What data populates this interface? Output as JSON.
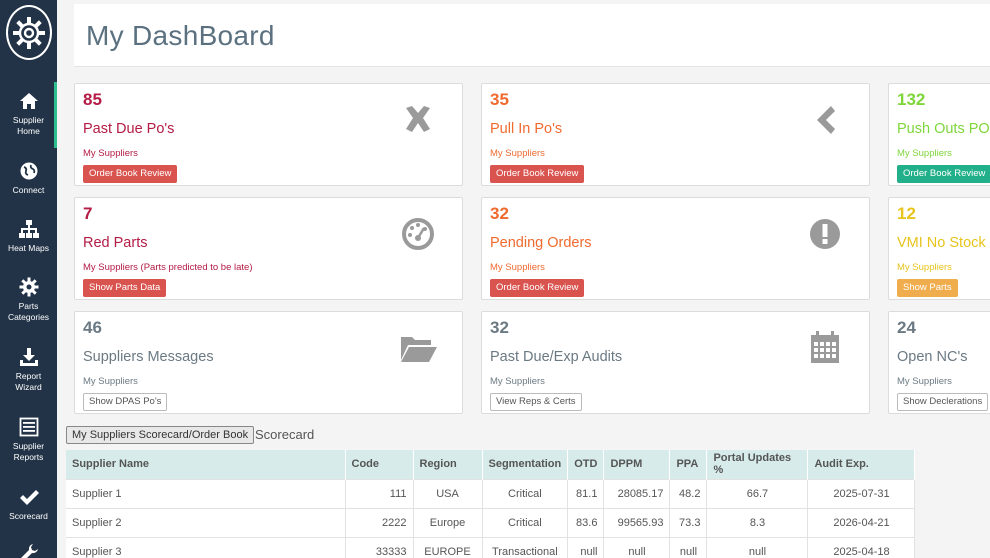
{
  "header": {
    "title": "My DashBoard"
  },
  "sidebar": {
    "items": [
      {
        "label_lines": [
          "Supplier",
          "Home"
        ],
        "icon": "home-icon"
      },
      {
        "label_lines": [
          "Connect"
        ],
        "icon": "globe-icon"
      },
      {
        "label_lines": [
          "Heat Maps"
        ],
        "icon": "sitemap-icon"
      },
      {
        "label_lines": [
          "Parts",
          "Categories"
        ],
        "icon": "gear-icon"
      },
      {
        "label_lines": [
          "Report",
          "Wizard"
        ],
        "icon": "download-icon"
      },
      {
        "label_lines": [
          "Supplier",
          "Reports"
        ],
        "icon": "list-icon"
      },
      {
        "label_lines": [
          "Scorecard"
        ],
        "icon": "check-icon"
      }
    ]
  },
  "cards": [
    {
      "count": "85",
      "title": "Past Due Po's",
      "sub": "My Suppliers",
      "button": "Order Book Review",
      "icon": "times-icon"
    },
    {
      "count": "35",
      "title": "Pull In Po's",
      "sub": "My Suppliers",
      "button": "Order Book Review",
      "icon": "chevron-left-icon"
    },
    {
      "count": "132",
      "title": "Push Outs PO",
      "sub": "My Suppliers",
      "button": "Order Book Review",
      "icon": ""
    },
    {
      "count": "7",
      "title": "Red Parts",
      "sub": "My Suppliers (Parts predicted to be late)",
      "button": "Show Parts Data",
      "icon": "dashboard-icon"
    },
    {
      "count": "32",
      "title": "Pending Orders",
      "sub": "My Suppliers",
      "button": "Order Book Review",
      "icon": "exclamation-icon"
    },
    {
      "count": "12",
      "title": "VMI No Stock",
      "sub": "My Suppliers",
      "button": "Show Parts",
      "icon": ""
    },
    {
      "count": "46",
      "title": "Suppliers Messages",
      "sub": "My Suppliers",
      "button": "Show DPAS Po's",
      "icon": "folder-open-icon"
    },
    {
      "count": "32",
      "title": "Past Due/Exp Audits",
      "sub": "My Suppliers",
      "button": "View Reps & Certs",
      "icon": "calendar-icon"
    },
    {
      "count": "24",
      "title": "Open NC's",
      "sub": "My Suppliers",
      "button": "Show Declerations",
      "icon": ""
    }
  ],
  "scorecard": {
    "tab_label": "My Suppliers Scorecard/Order Book",
    "label": "Scorecard",
    "columns": [
      "Supplier Name",
      "Code",
      "Region",
      "Segmentation",
      "OTD",
      "DPPM",
      "PPA",
      "Portal Updates %",
      "Audit Exp."
    ],
    "rows": [
      [
        "Supplier 1",
        "111",
        "USA",
        "Critical",
        "81.1",
        "28085.17",
        "48.2",
        "66.7",
        "2025-07-31"
      ],
      [
        "Supplier 2",
        "2222",
        "Europe",
        "Critical",
        "83.6",
        "99565.93",
        "73.3",
        "8.3",
        "2026-04-21"
      ],
      [
        "Supplier 3",
        "33333",
        "EUROPE",
        "Transactional",
        "null",
        "null",
        "null",
        "null",
        "2025-04-18"
      ]
    ]
  },
  "colors": {
    "sidebar": "#223347",
    "crimson": "#b41b45",
    "orange": "#ef6a2f",
    "lime": "#7fd63b",
    "yellow": "#e8c41c",
    "slate": "#6b7983",
    "table_header": "#d6ebea"
  }
}
